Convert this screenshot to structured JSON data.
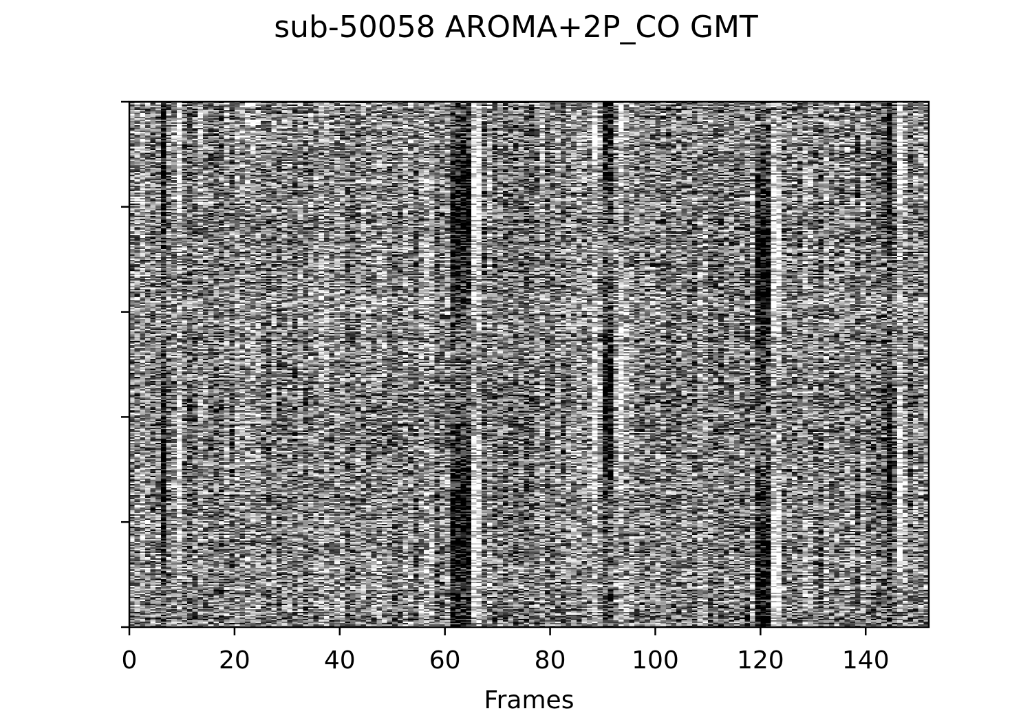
{
  "chart_data": {
    "type": "heatmap",
    "title": "sub-50058 AROMA+2P_CO GMT",
    "xlabel": "Frames",
    "ylabel": "",
    "xlim": [
      0,
      152
    ],
    "x_ticks": [
      0,
      20,
      40,
      60,
      80,
      100,
      120,
      140
    ],
    "x_tick_labels": [
      "0",
      "20",
      "40",
      "60",
      "80",
      "100",
      "120",
      "140"
    ],
    "y_tick_count": 6,
    "y_tick_labels": [
      "",
      "",
      "",
      "",
      "",
      ""
    ],
    "n_frames": 152,
    "colormap": "grayscale",
    "grid": false,
    "dark_columns": [
      6,
      61,
      62,
      63,
      64,
      90,
      91,
      119,
      120,
      121,
      144
    ],
    "bright_columns": [
      9,
      65,
      66,
      88,
      93,
      122,
      123,
      146
    ]
  },
  "colors": {
    "axis": "#000000",
    "background": "#ffffff"
  }
}
